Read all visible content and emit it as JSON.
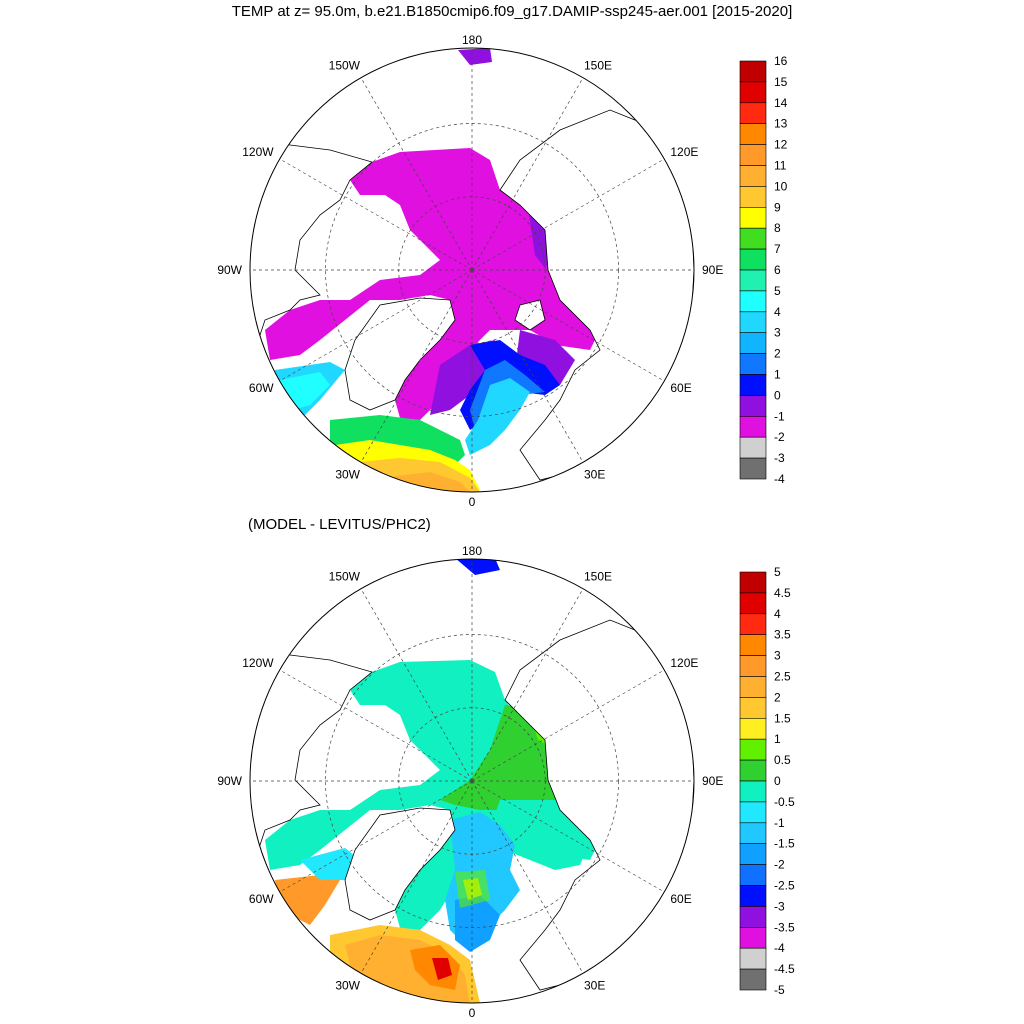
{
  "title": "TEMP at z=  95.0m, b.e21.B1850cmip6.f09_g17.DAMIP-ssp245-aer.001 [2015-2020]",
  "panels": [
    {
      "id": "top",
      "subtitle": "",
      "lon_labels": [
        "180",
        "150E",
        "120E",
        "90E",
        "60E",
        "30E",
        "0",
        "30W",
        "60W",
        "90W",
        "120W",
        "150W"
      ],
      "colorbar": {
        "labels": [
          "16",
          "15",
          "14",
          "13",
          "12",
          "11",
          "10",
          "9",
          "8",
          "7",
          "6",
          "5",
          "4",
          "3",
          "2",
          "1",
          "0",
          "-1",
          "-2",
          "-3",
          "-4"
        ],
        "colors": [
          "#c00000",
          "#e00000",
          "#ff2a10",
          "#ff8800",
          "#ff9a2a",
          "#ffb030",
          "#ffc830",
          "#ffff00",
          "#40dd20",
          "#10e060",
          "#20f0b0",
          "#20ffff",
          "#20d8ff",
          "#10b4ff",
          "#1078ff",
          "#0010ff",
          "#9010e0",
          "#e010e0",
          "#d0d0d0",
          "#707070"
        ]
      }
    },
    {
      "id": "bottom",
      "subtitle": "(MODEL - LEVITUS/PHC2)",
      "lon_labels": [
        "180",
        "150E",
        "120E",
        "90E",
        "60E",
        "30E",
        "0",
        "30W",
        "60W",
        "90W",
        "120W",
        "150W"
      ],
      "colorbar": {
        "labels": [
          "5",
          "4.5",
          "4",
          "3.5",
          "3",
          "2.5",
          "2",
          "1.5",
          "1",
          "0.5",
          "0",
          "-0.5",
          "-1",
          "-1.5",
          "-2",
          "-2.5",
          "-3",
          "-3.5",
          "-4",
          "-4.5",
          "-5"
        ],
        "colors": [
          "#c00000",
          "#e00000",
          "#ff2a10",
          "#ff8800",
          "#ff9a2a",
          "#ffb030",
          "#ffc830",
          "#ffee20",
          "#60f000",
          "#30d030",
          "#10f0c0",
          "#20e8ff",
          "#20c8ff",
          "#10a0ff",
          "#1070ff",
          "#0010ff",
          "#9010e0",
          "#e010e0",
          "#d0d0d0",
          "#707070"
        ]
      }
    }
  ]
}
